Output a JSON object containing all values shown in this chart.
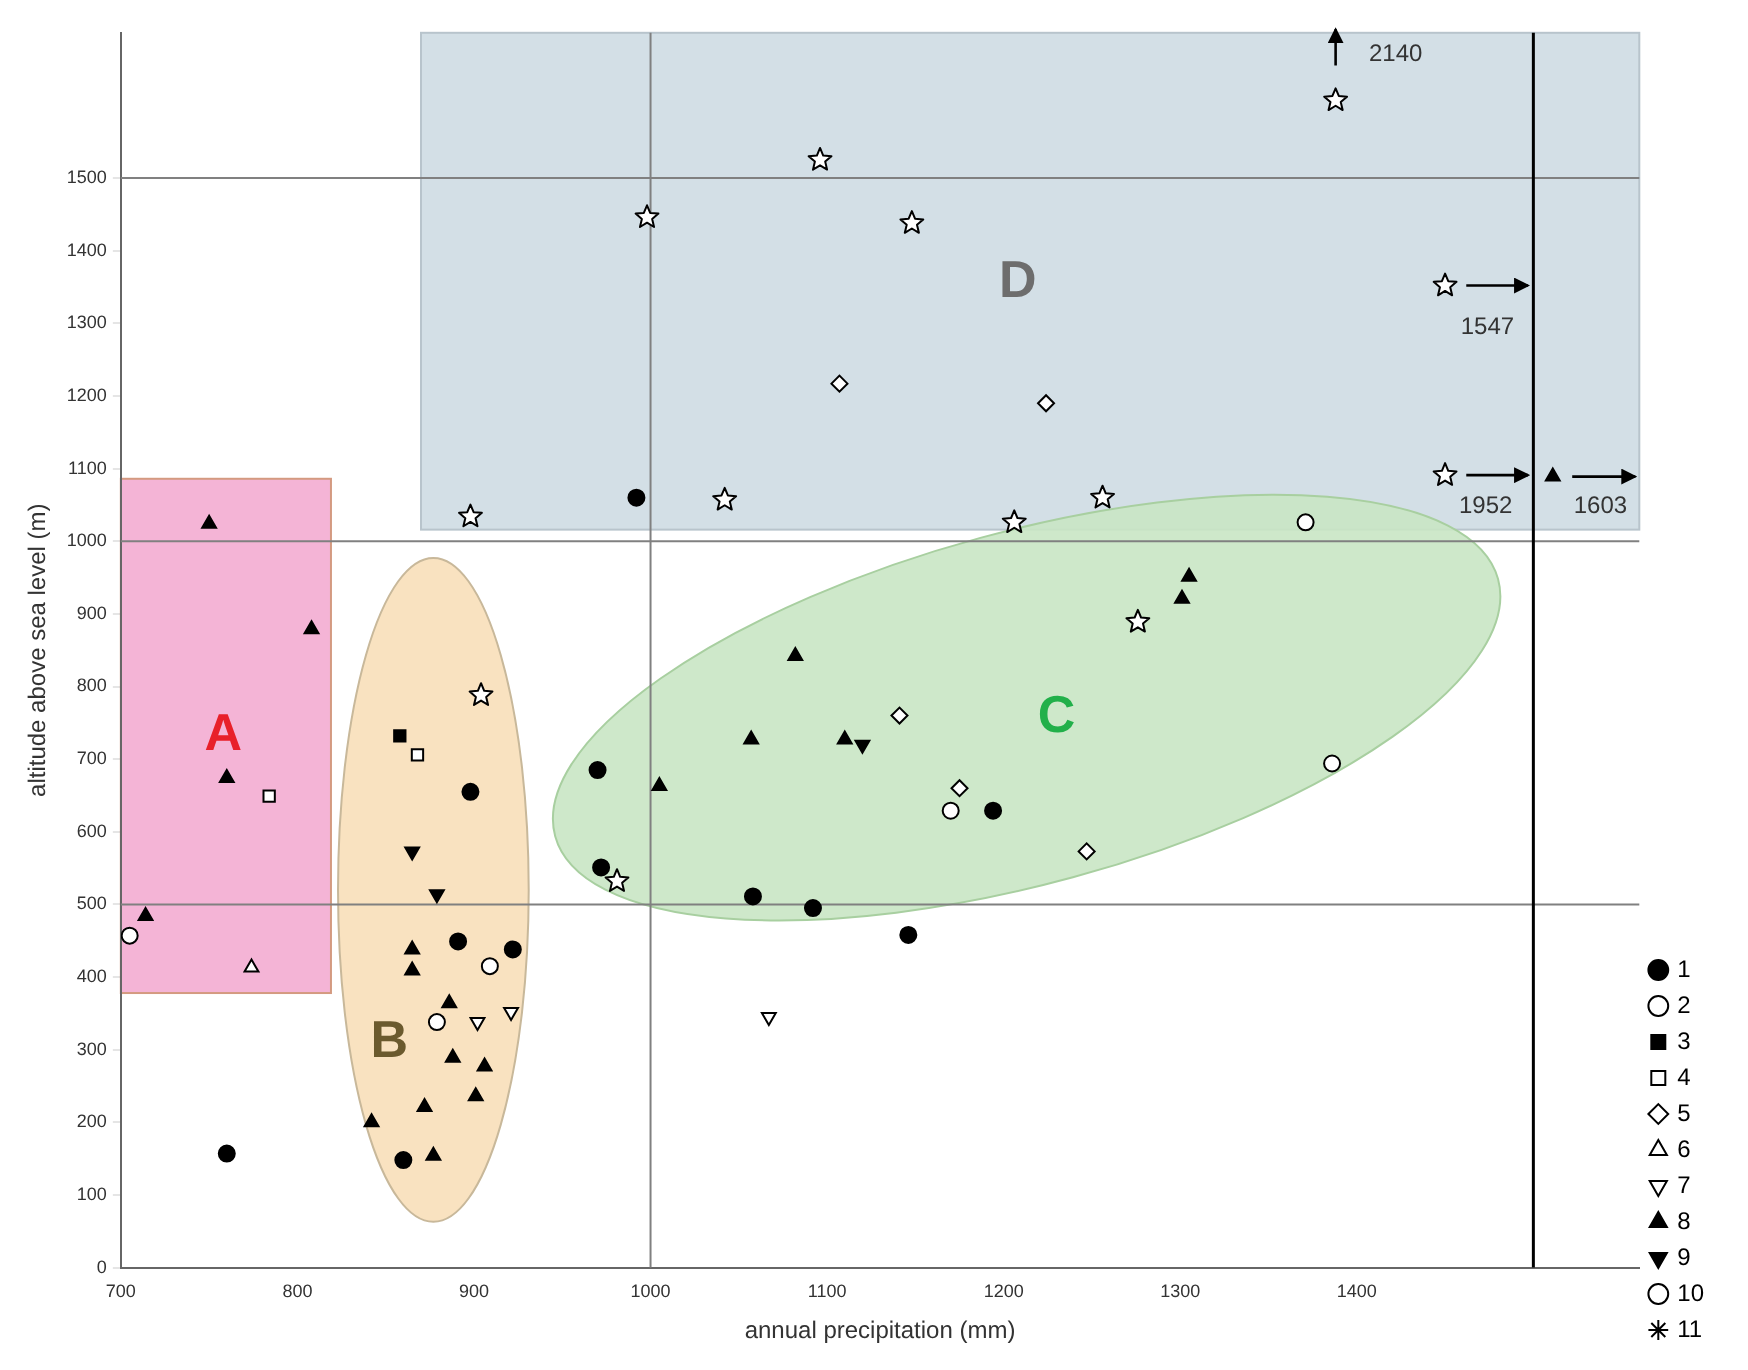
{
  "chart_data": {
    "type": "scatter",
    "xlabel": "annual precipitation (mm)",
    "ylabel": "altitude above sea level (m)",
    "xlim": [
      700,
      1560
    ],
    "xticks": [
      700,
      800,
      900,
      1000,
      1100,
      1200,
      1300,
      1400
    ],
    "ylim": [
      0,
      1700
    ],
    "yticks": [
      0,
      100,
      200,
      300,
      400,
      500,
      600,
      700,
      800,
      900,
      1000,
      1100,
      1200,
      1300,
      1400,
      1500
    ],
    "legend": "right",
    "ref_lines": [
      {
        "axis": "y",
        "value": 500,
        "color": "#808080"
      },
      {
        "axis": "y",
        "value": 1000,
        "color": "#808080"
      },
      {
        "axis": "y",
        "value": 1500,
        "color": "#808080"
      },
      {
        "axis": "x",
        "value": 1000,
        "color": "#808080"
      },
      {
        "axis": "x",
        "value": 1500,
        "color": "#000000"
      }
    ],
    "annotations": [
      "A",
      "B",
      "C",
      "D",
      "2140",
      "1547",
      "1952",
      "1603"
    ],
    "series": [
      {
        "name": "1",
        "color": "#000000",
        "marker": "circle",
        "x": [
          760,
          898,
          891,
          922,
          860,
          992,
          970,
          1194,
          972,
          1058,
          1092,
          1146
        ],
        "values": [
          157,
          655,
          449,
          438,
          148,
          1060,
          685,
          629,
          551,
          511,
          495,
          458
        ]
      },
      {
        "name": "2",
        "color": "#ffffff",
        "marker": "circle",
        "x": [
          705,
          1170,
          1371,
          1386
        ],
        "values": [
          457,
          629,
          1026,
          694
        ]
      },
      {
        "name": "3",
        "color": "#000000",
        "marker": "square",
        "x": [
          858
        ],
        "values": [
          732
        ]
      },
      {
        "name": "4",
        "color": "#ffffff",
        "marker": "square",
        "x": [
          784,
          868
        ],
        "values": [
          649,
          706
        ]
      },
      {
        "name": "5",
        "color": "#ffffff",
        "marker": "diamond",
        "x": [
          1107,
          1224,
          1141,
          1175,
          1247
        ],
        "values": [
          1217,
          1190,
          760,
          660,
          573
        ]
      },
      {
        "name": "6",
        "color": "#ffffff",
        "marker": "triangle",
        "x": [
          774
        ],
        "values": [
          413
        ]
      },
      {
        "name": "7",
        "color": "#ffffff",
        "marker": "triangle-down",
        "x": [
          902,
          921,
          1067
        ],
        "values": [
          338,
          352,
          345
        ]
      },
      {
        "name": "8",
        "color": "#000000",
        "marker": "triangle",
        "x": [
          750,
          808,
          760,
          714,
          886,
          865,
          865,
          888,
          906,
          872,
          901,
          842,
          877,
          1082,
          1057,
          1110,
          1005,
          1305,
          1301,
          1511
        ],
        "values": [
          1024,
          879,
          674,
          484,
          364,
          438,
          409,
          289,
          277,
          221,
          236,
          200,
          154,
          842,
          727,
          727,
          663,
          951,
          921,
          1089
        ]
      },
      {
        "name": "9",
        "color": "#000000",
        "marker": "triangle-down",
        "x": [
          865,
          879,
          1120
        ],
        "values": [
          573,
          514,
          720
        ]
      },
      {
        "name": "10",
        "color": "#ffffff",
        "marker": "circle",
        "x": [
          909,
          879
        ],
        "values": [
          415,
          338
        ]
      },
      {
        "name": "11",
        "color": "#ffffff",
        "marker": "star",
        "x": [
          904,
          981,
          1206,
          1276,
          1256,
          1450,
          1388,
          1096,
          998,
          1148,
          1450,
          898,
          1042
        ],
        "values": [
          788,
          532,
          1026,
          889,
          1060,
          1091,
          1607,
          1525,
          1446,
          1438,
          1352,
          1034,
          1057
        ]
      }
    ]
  }
}
